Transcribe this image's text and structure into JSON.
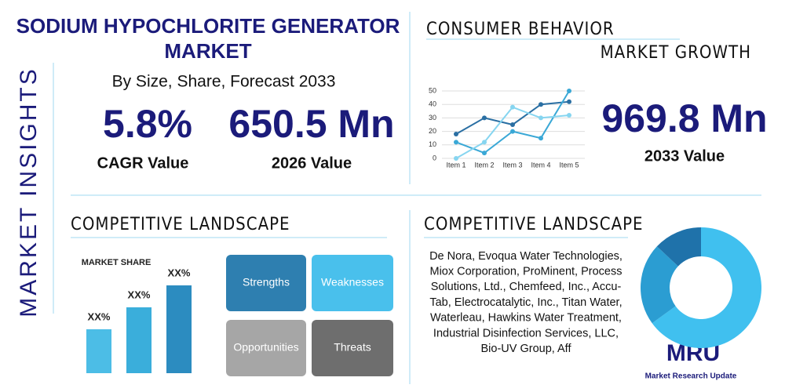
{
  "side_label": "MARKET INSIGHTS",
  "header": {
    "title_line1": "SODIUM HYPOCHLORITE GENERATOR",
    "title_line2": "MARKET",
    "subtitle": "By Size, Share, Forecast 2033"
  },
  "stats": [
    {
      "value": "5.8%",
      "label": "CAGR Value"
    },
    {
      "value": "650.5 Mn",
      "label": "2026 Value"
    },
    {
      "value": "969.8 Mn",
      "label": "2033 Value"
    }
  ],
  "consumer": {
    "title": "CONSUMER BEHAVIOR",
    "subtitle": "MARKET GROWTH",
    "chart": {
      "type": "line",
      "categories": [
        "Item 1",
        "Item 2",
        "Item 3",
        "Item 4",
        "Item 5"
      ],
      "series": [
        {
          "color": "#2a6fa3",
          "values": [
            18,
            30,
            25,
            40,
            42
          ]
        },
        {
          "color": "#3aa8d6",
          "values": [
            12,
            4,
            20,
            15,
            50
          ]
        },
        {
          "color": "#86d5f0",
          "values": [
            0,
            12,
            38,
            30,
            32
          ]
        }
      ],
      "ylim": [
        0,
        50
      ],
      "yticks": [
        0,
        10,
        20,
        30,
        40,
        50
      ],
      "grid": true
    }
  },
  "competitive_left": {
    "title": "COMPETITIVE LANDSCAPE",
    "chart": {
      "type": "bar",
      "title": "MARKET SHARE",
      "values": [
        20,
        30,
        40
      ],
      "labels": [
        "XX%",
        "XX%",
        "XX%"
      ],
      "colors": [
        "#4cbde6",
        "#3aaedb",
        "#2c8cc0"
      ]
    },
    "swot": [
      "Strengths",
      "Weaknesses",
      "Opportunities",
      "Threats"
    ]
  },
  "competitive_right": {
    "title": "COMPETITIVE LANDSCAPE",
    "lines": [
      "De Nora, Evoqua Water Technologies,",
      "Miox Corporation, ProMinent, Process",
      "Solutions, Ltd., Chemfeed, Inc., Accu-",
      "Tab, Electrocatalytic, Inc., Titan Water,",
      "Waterleau, Hawkins Water Treatment,",
      "Industrial Disinfection Services, LLC,",
      "Bio-UV Group, Aff"
    ],
    "chart": {
      "type": "pie",
      "values": [
        65,
        22,
        13
      ],
      "colors": [
        "#40c0ef",
        "#2b9dd2",
        "#1f72aa"
      ]
    }
  },
  "logo": {
    "mark": "MRU",
    "name": "Market Research Update"
  }
}
